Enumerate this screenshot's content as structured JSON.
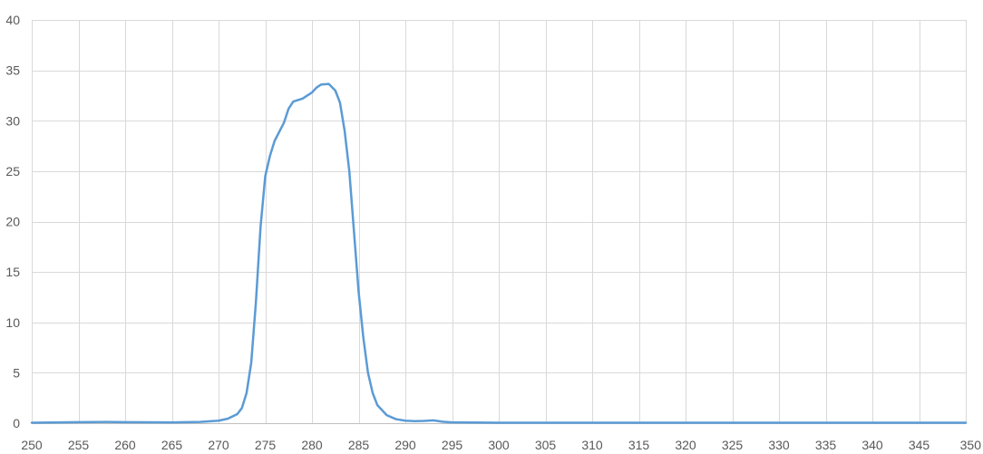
{
  "chart_data": {
    "type": "line",
    "title": "",
    "xlabel": "",
    "ylabel": "",
    "xlim": [
      250,
      350
    ],
    "ylim": [
      0,
      40
    ],
    "x_ticks": [
      250,
      255,
      260,
      265,
      270,
      275,
      280,
      285,
      290,
      295,
      300,
      305,
      310,
      315,
      320,
      325,
      330,
      335,
      340,
      345,
      350
    ],
    "y_ticks": [
      0,
      5,
      10,
      15,
      20,
      25,
      30,
      35,
      40
    ],
    "grid": true,
    "legend": "none",
    "series": [
      {
        "color": "#5b9bd5",
        "points": [
          [
            250,
            0.05
          ],
          [
            255,
            0.1
          ],
          [
            258,
            0.12
          ],
          [
            260,
            0.1
          ],
          [
            265,
            0.08
          ],
          [
            268,
            0.12
          ],
          [
            270,
            0.25
          ],
          [
            271,
            0.45
          ],
          [
            272,
            0.9
          ],
          [
            272.5,
            1.5
          ],
          [
            273,
            3.0
          ],
          [
            273.5,
            6.0
          ],
          [
            274,
            12.0
          ],
          [
            274.5,
            19.5
          ],
          [
            275,
            24.5
          ],
          [
            275.5,
            26.5
          ],
          [
            276,
            28.0
          ],
          [
            277,
            29.8
          ],
          [
            277.5,
            31.2
          ],
          [
            278,
            31.9
          ],
          [
            279,
            32.2
          ],
          [
            280,
            32.8
          ],
          [
            280.5,
            33.3
          ],
          [
            281,
            33.6
          ],
          [
            281.8,
            33.65
          ],
          [
            282.5,
            33.0
          ],
          [
            283,
            31.8
          ],
          [
            283.5,
            29.0
          ],
          [
            284,
            25.0
          ],
          [
            284.5,
            19.0
          ],
          [
            285,
            13.0
          ],
          [
            285.5,
            8.5
          ],
          [
            286,
            5.0
          ],
          [
            286.5,
            3.0
          ],
          [
            287,
            1.8
          ],
          [
            288,
            0.8
          ],
          [
            289,
            0.4
          ],
          [
            290,
            0.25
          ],
          [
            291,
            0.2
          ],
          [
            292,
            0.22
          ],
          [
            293,
            0.28
          ],
          [
            294,
            0.15
          ],
          [
            295,
            0.08
          ],
          [
            300,
            0.05
          ],
          [
            310,
            0.05
          ],
          [
            320,
            0.05
          ],
          [
            330,
            0.05
          ],
          [
            340,
            0.05
          ],
          [
            350,
            0.05
          ]
        ]
      }
    ]
  }
}
